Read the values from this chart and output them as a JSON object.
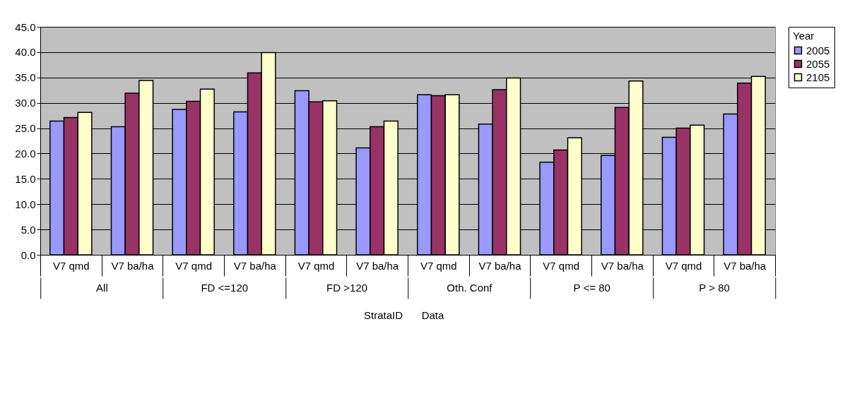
{
  "chart_data": {
    "type": "bar",
    "categories": [
      "V7 qmd",
      "V7 ba/ha",
      "V7 qmd",
      "V7 ba/ha",
      "V7 qmd",
      "V7 ba/ha",
      "V7 qmd",
      "V7 ba/ha",
      "V7 qmd",
      "V7 ba/ha",
      "V7 qmd",
      "V7 ba/ha"
    ],
    "series": [
      {
        "name": "2005",
        "color": "#9999ff",
        "values": [
          26.4,
          25.3,
          28.7,
          28.2,
          32.4,
          21.1,
          31.6,
          25.8,
          18.3,
          19.6,
          23.2,
          27.8
        ]
      },
      {
        "name": "2055",
        "color": "#993366",
        "values": [
          27.1,
          31.9,
          30.3,
          35.9,
          30.2,
          25.3,
          31.4,
          32.6,
          20.7,
          29.1,
          25.0,
          33.9
        ]
      },
      {
        "name": "2105",
        "color": "#ffffcc",
        "values": [
          28.1,
          34.4,
          32.7,
          39.9,
          30.4,
          26.4,
          31.6,
          34.9,
          23.1,
          34.3,
          25.6,
          35.2
        ]
      }
    ],
    "ylim": [
      0,
      45
    ],
    "yticks": [
      {
        "value": 0,
        "label": "0.0"
      },
      {
        "value": 5,
        "label": "5.0"
      },
      {
        "value": 10,
        "label": "10.0"
      },
      {
        "value": 15,
        "label": "15.0"
      },
      {
        "value": 20,
        "label": "20.0"
      },
      {
        "value": 25,
        "label": "25.0"
      },
      {
        "value": 30,
        "label": "30.0"
      },
      {
        "value": 35,
        "label": "35.0"
      },
      {
        "value": 40,
        "label": "40.0"
      },
      {
        "value": 45,
        "label": "45.0"
      }
    ],
    "legend_title": "Year",
    "legend": "right",
    "grid": "y",
    "annotations": [
      "All",
      "FD <=120",
      "FD >120",
      "Oth. Conf",
      "P <= 80",
      "P > 80",
      "StrataID",
      "Data"
    ]
  }
}
